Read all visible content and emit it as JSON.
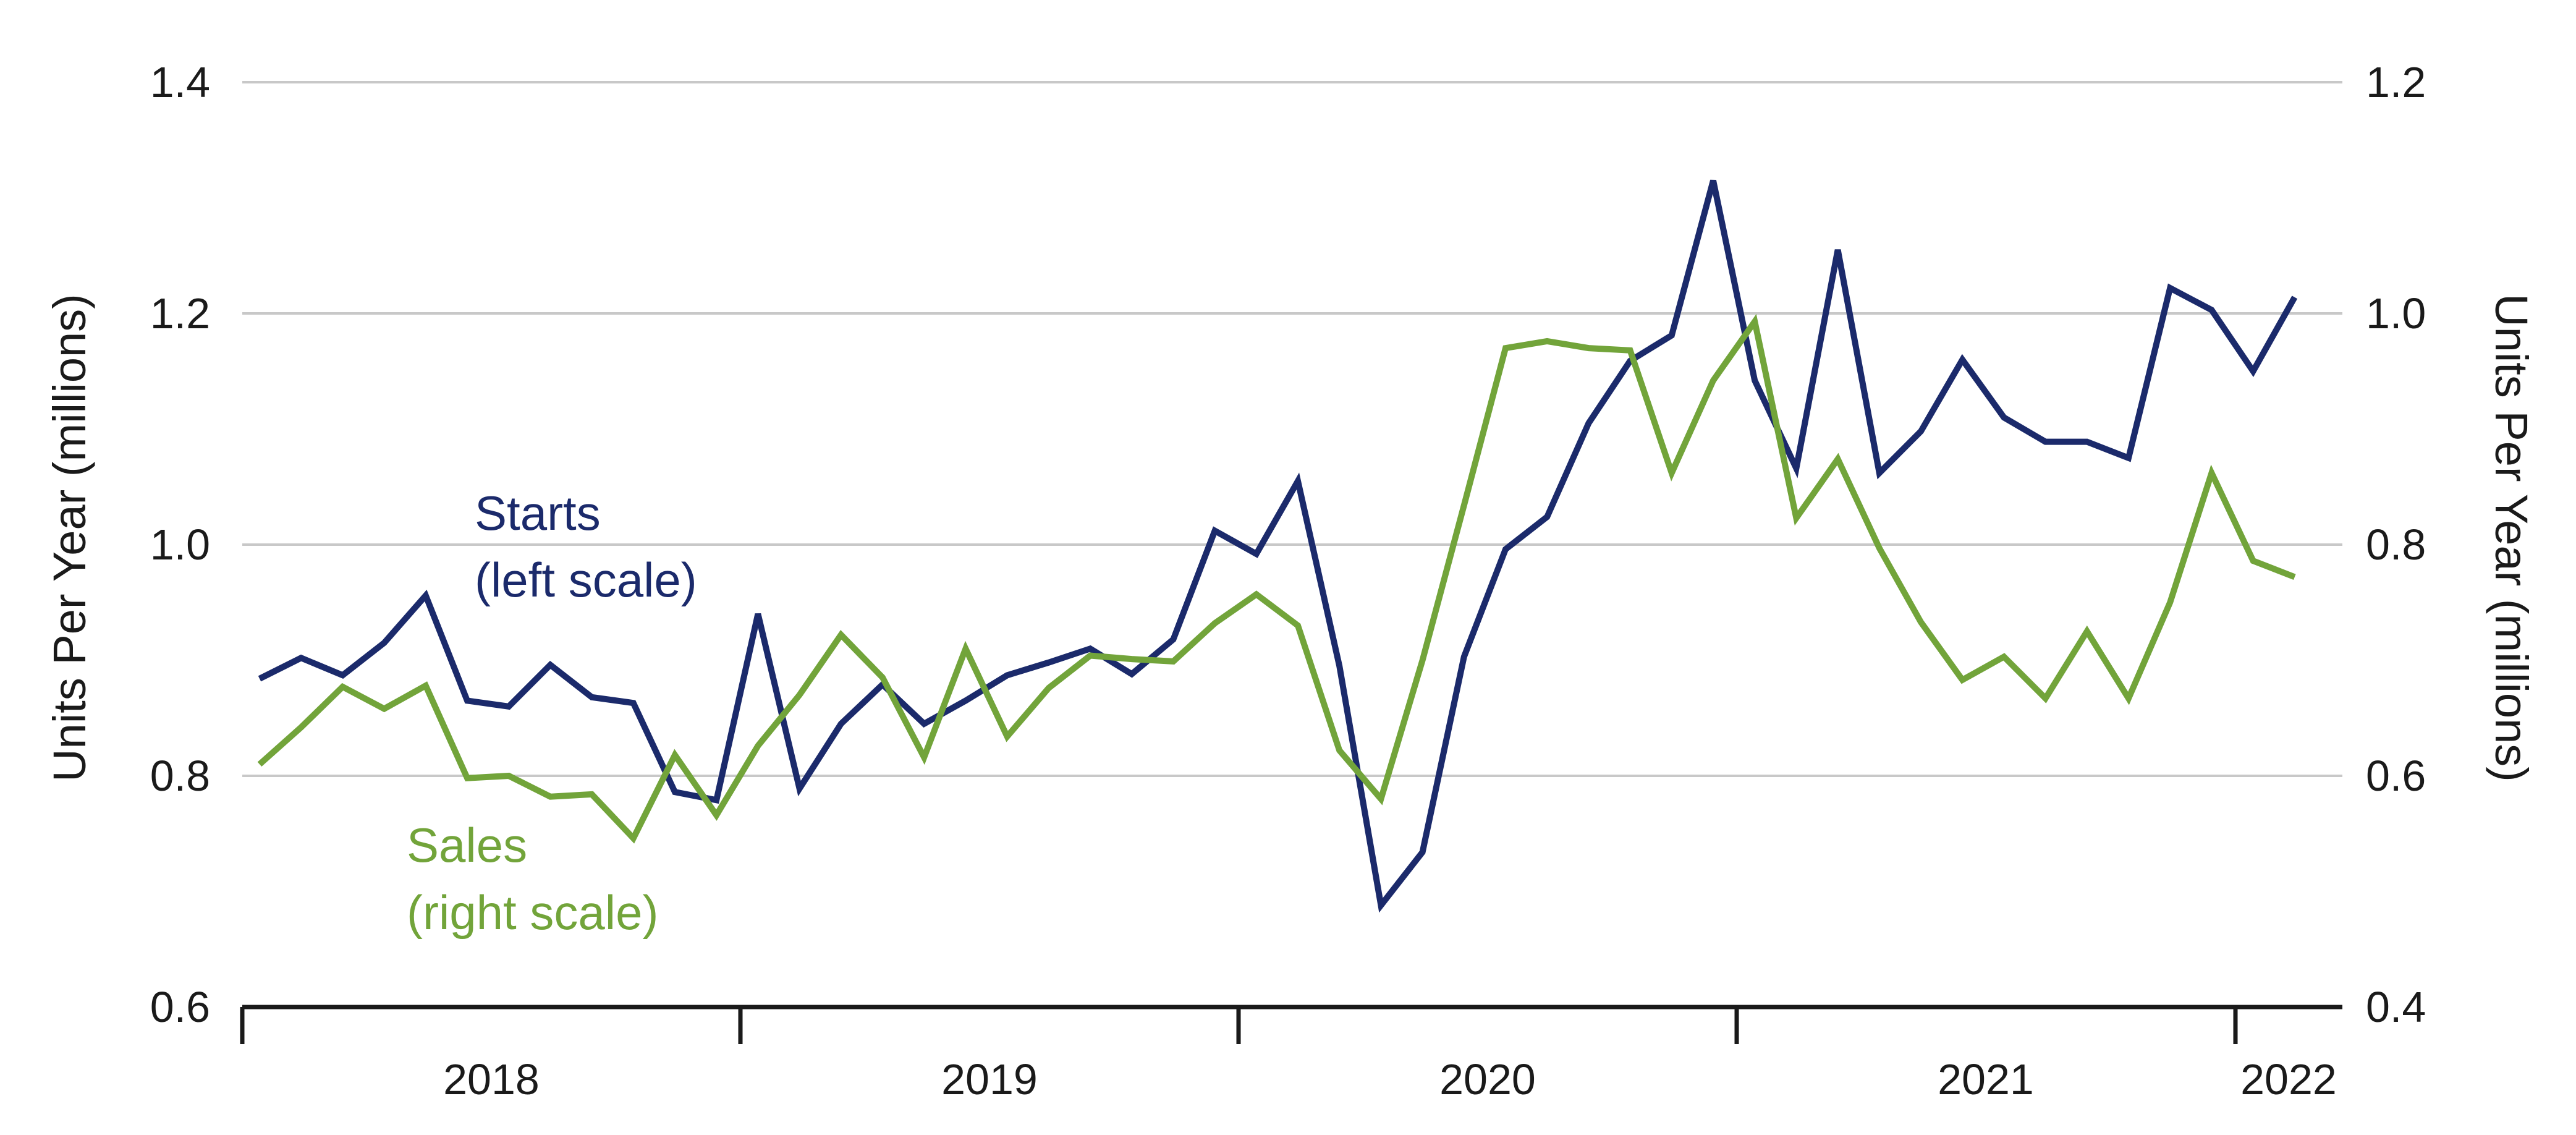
{
  "chart_data": {
    "type": "line",
    "x_start": "2018-01",
    "x_end": "2022-03",
    "year_labels": [
      "2018",
      "2019",
      "2020",
      "2021",
      "2022"
    ],
    "y_left": {
      "label": "Units Per Year (millions)",
      "ylim": [
        0.6,
        1.4
      ],
      "ticks": [
        "0.6",
        "0.8",
        "1.0",
        "1.2",
        "1.4"
      ]
    },
    "y_right": {
      "label": "Units Per Year (millions)",
      "ylim": [
        0.4,
        1.2
      ],
      "ticks": [
        "0.4",
        "0.6",
        "0.8",
        "1.0",
        "1.2"
      ]
    },
    "grid": true,
    "series": [
      {
        "name": "Starts",
        "axis": "left",
        "color": "#1b2a6b",
        "annotation": [
          "Starts",
          "(left scale)"
        ],
        "values": [
          0.884,
          0.902,
          0.887,
          0.915,
          0.956,
          0.865,
          0.86,
          0.896,
          0.868,
          0.863,
          0.786,
          0.779,
          0.94,
          0.789,
          0.845,
          0.879,
          0.845,
          0.865,
          0.887,
          0.898,
          0.91,
          0.888,
          0.918,
          1.012,
          0.992,
          1.055,
          0.895,
          0.688,
          0.734,
          0.903,
          0.996,
          1.024,
          1.105,
          1.159,
          1.181,
          1.315,
          1.142,
          1.066,
          1.255,
          1.062,
          1.098,
          1.16,
          1.11,
          1.089,
          1.089,
          1.075,
          1.222,
          1.203,
          1.15,
          1.214
        ]
      },
      {
        "name": "Sales",
        "axis": "right",
        "color": "#72a43a",
        "annotation": [
          "Sales",
          "(right scale)"
        ],
        "values": [
          0.61,
          0.642,
          0.677,
          0.658,
          0.678,
          0.598,
          0.6,
          0.582,
          0.584,
          0.546,
          0.618,
          0.566,
          0.626,
          0.67,
          0.722,
          0.685,
          0.616,
          0.71,
          0.634,
          0.676,
          0.704,
          0.701,
          0.699,
          0.732,
          0.757,
          0.73,
          0.622,
          0.58,
          0.7,
          0.834,
          0.97,
          0.976,
          0.97,
          0.968,
          0.862,
          0.942,
          0.993,
          0.823,
          0.874,
          0.797,
          0.733,
          0.683,
          0.703,
          0.667,
          0.725,
          0.667,
          0.75,
          0.862,
          0.786,
          0.772
        ]
      }
    ]
  }
}
